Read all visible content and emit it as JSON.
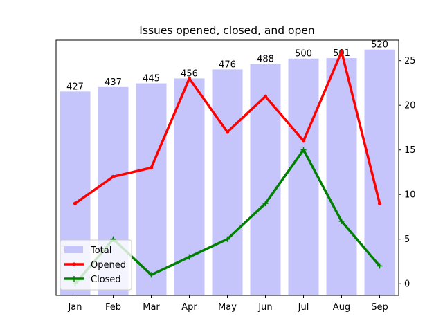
{
  "chart_data": {
    "type": "bar",
    "title": "Issues opened, closed, and open",
    "categories": [
      "Jan",
      "Feb",
      "Mar",
      "Apr",
      "May",
      "Jun",
      "Jul",
      "Aug",
      "Sep"
    ],
    "bar_series": {
      "name": "Total",
      "values": [
        427,
        437,
        445,
        456,
        476,
        488,
        500,
        501,
        520
      ],
      "labels": [
        "427",
        "437",
        "445",
        "456",
        "476",
        "488",
        "500",
        "501",
        "520"
      ],
      "color": "#c5c5fb"
    },
    "bar_axis_range": [
      -25,
      541
    ],
    "line_axis": {
      "side": "right",
      "ylim": [
        -1.3,
        27.3
      ],
      "ticks": [
        0,
        5,
        10,
        15,
        20,
        25
      ],
      "tick_labels": [
        "0",
        "5",
        "10",
        "15",
        "20",
        "25"
      ]
    },
    "series": [
      {
        "name": "Opened",
        "type": "line",
        "color": "#ff0000",
        "marker": "dot",
        "values": [
          9,
          12,
          13,
          23,
          17,
          21,
          16,
          26,
          9
        ]
      },
      {
        "name": "Closed",
        "type": "line",
        "color": "#008000",
        "marker": "plus",
        "values": [
          0,
          5,
          1,
          3,
          5,
          9,
          15,
          7,
          2
        ]
      }
    ],
    "legend": {
      "placement": "lower-left",
      "entries": [
        "Total",
        "Opened",
        "Closed"
      ]
    },
    "grid": false
  }
}
